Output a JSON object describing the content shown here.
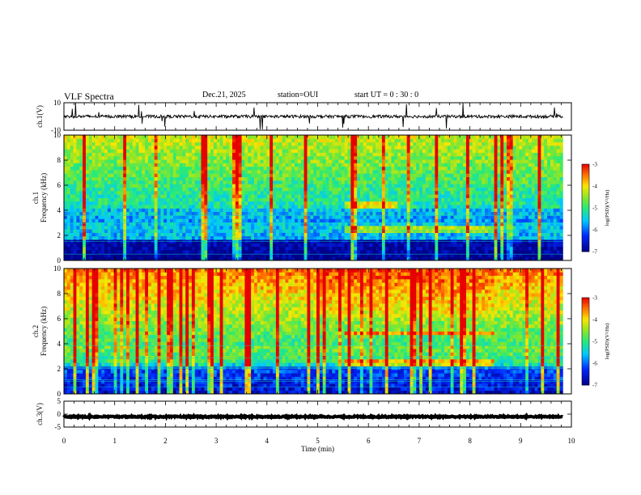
{
  "header": {
    "title": "VLF Spectra",
    "date": "Dec.21, 2025",
    "station": "station=OUI",
    "start_ut": "start  UT =   0 : 30 : 0"
  },
  "chart_data": [
    {
      "type": "line",
      "panel": "ch1-waveform",
      "ylabel": "ch.1(V)",
      "ylim": [
        -10,
        10
      ],
      "y_ticks": [
        "10",
        "-10"
      ],
      "xlim": [
        0,
        10
      ],
      "baseline": 0,
      "color": "#000000"
    },
    {
      "type": "heatmap",
      "panel": "ch1-spectrogram",
      "ylabel": "ch.1\nFrequency  (kHz)",
      "xlim": [
        0,
        10
      ],
      "ylim": [
        0,
        10
      ],
      "y_ticks": [
        "0",
        "2",
        "4",
        "6",
        "8",
        "10"
      ],
      "colorbar": {
        "label": "log(PSD)(V²/Hz)",
        "min": -7,
        "max": -3,
        "ticks": [
          "-3",
          "-4",
          "-5",
          "-6",
          "-7"
        ]
      },
      "features": [
        {
          "name": "enhanced band",
          "t_start": 5.5,
          "t_end": 8.5,
          "f_low": 2.2,
          "f_high": 2.8
        },
        {
          "name": "enhanced band",
          "t_start": 5.5,
          "t_end": 6.6,
          "f_low": 4.2,
          "f_high": 4.6
        }
      ]
    },
    {
      "type": "heatmap",
      "panel": "ch2-spectrogram",
      "ylabel": "ch.2\nFrequency  (kHz)",
      "xlim": [
        0,
        10
      ],
      "ylim": [
        0,
        10
      ],
      "y_ticks": [
        "0",
        "2",
        "4",
        "6",
        "8",
        "10"
      ],
      "colorbar": {
        "label": "log(PSD)(V²/Hz)",
        "min": -7,
        "max": -3,
        "ticks": [
          "-3",
          "-4",
          "-5",
          "-6",
          "-7"
        ]
      },
      "features": [
        {
          "name": "enhanced band",
          "t_start": 5.5,
          "t_end": 8.5,
          "f_low": 4.6,
          "f_high": 5.1
        },
        {
          "name": "enhanced band",
          "t_start": 5.5,
          "t_end": 8.5,
          "f_low": 2.3,
          "f_high": 2.8
        }
      ]
    },
    {
      "type": "line",
      "panel": "ch3-waveform",
      "ylabel": "ch.3(V)",
      "ylim": [
        -5,
        5
      ],
      "y_ticks": [
        "5",
        "0",
        "-5"
      ],
      "xlim": [
        0,
        10
      ],
      "baseline": -1,
      "color": "#000000"
    }
  ],
  "x_axis": {
    "label": "Time  (min)",
    "ticks": [
      "0",
      "1",
      "2",
      "3",
      "4",
      "5",
      "6",
      "7",
      "8",
      "9",
      "10"
    ]
  }
}
